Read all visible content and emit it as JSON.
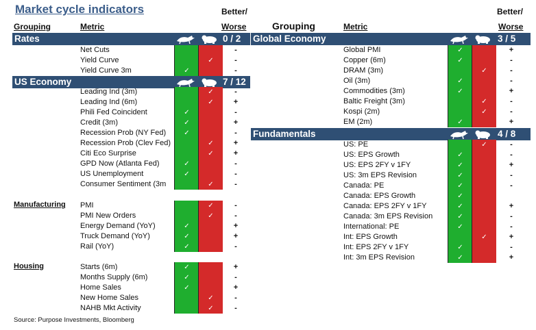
{
  "title": "Market cycle indicators",
  "headers": {
    "grouping": "Grouping",
    "metric": "Metric",
    "better_worse_top": "Better/",
    "better_worse_bottom": "Worse"
  },
  "icons": {
    "bull": "bull-icon",
    "bear": "bear-icon"
  },
  "colors": {
    "band": "#2f4f74",
    "bull_cell": "#1fae2f",
    "bear_cell": "#d42a2a",
    "title": "#3b5d8a"
  },
  "check_mark": "✓",
  "left": {
    "rates": {
      "label": "Rates",
      "score": "0 / 2",
      "rows": [
        {
          "metric": "Net Cuts",
          "signal": "",
          "trend": "-"
        },
        {
          "metric": "Yield Curve",
          "signal": "bear",
          "trend": "-"
        },
        {
          "metric": "Yield Curve 3m",
          "signal": "bull",
          "trend": "-"
        }
      ]
    },
    "us_economy": {
      "label": "US Economy",
      "score": "7 / 12",
      "rows": [
        {
          "metric": "Leading Ind (3m)",
          "signal": "bear",
          "trend": "-"
        },
        {
          "metric": "Leading Ind (6m)",
          "signal": "bear",
          "trend": "+"
        },
        {
          "metric": "Phili Fed Coincident",
          "signal": "bull",
          "trend": "-"
        },
        {
          "metric": "Credit (3m)",
          "signal": "bull",
          "trend": "+"
        },
        {
          "metric": "Recession Prob (NY Fed)",
          "signal": "bull",
          "trend": "-"
        },
        {
          "metric": "Recession Prob (Clev Fed)",
          "signal": "bear",
          "trend": "+"
        },
        {
          "metric": "Citi Eco Surprise",
          "signal": "bear",
          "trend": "+"
        },
        {
          "metric": "GPD Now (Atlanta Fed)",
          "signal": "bull",
          "trend": "-"
        },
        {
          "metric": "US Unemployment",
          "signal": "bull",
          "trend": "-"
        },
        {
          "metric": "Consumer Sentiment (3m",
          "signal": "bear",
          "trend": "-"
        }
      ]
    },
    "manufacturing": {
      "label": "Manufacturing",
      "rows": [
        {
          "metric": "PMI",
          "signal": "bear",
          "trend": "-"
        },
        {
          "metric": "PMI New Orders",
          "signal": "bear",
          "trend": "-"
        },
        {
          "metric": "Energy Demand (YoY)",
          "signal": "bull",
          "trend": "+"
        },
        {
          "metric": "Truck Demand (YoY)",
          "signal": "bull",
          "trend": "+"
        },
        {
          "metric": "Rail (YoY)",
          "signal": "bull",
          "trend": "-"
        }
      ]
    },
    "housing": {
      "label": "Housing",
      "rows": [
        {
          "metric": "Starts (6m)",
          "signal": "bull",
          "trend": "+"
        },
        {
          "metric": "Months Supply (6m)",
          "signal": "bull",
          "trend": "-"
        },
        {
          "metric": "Home Sales",
          "signal": "bull",
          "trend": "+"
        },
        {
          "metric": "New Home Sales",
          "signal": "bear",
          "trend": "-"
        },
        {
          "metric": "NAHB Mkt Activity",
          "signal": "bear",
          "trend": "-"
        }
      ]
    }
  },
  "right": {
    "global_economy": {
      "label": "Global Economy",
      "score": "3 / 5",
      "rows": [
        {
          "metric": "Global PMI",
          "signal": "bull",
          "trend": "+"
        },
        {
          "metric": "Copper (6m)",
          "signal": "bull",
          "trend": "-"
        },
        {
          "metric": "DRAM (3m)",
          "signal": "bear",
          "trend": "-"
        },
        {
          "metric": "Oil (3m)",
          "signal": "bull",
          "trend": "-"
        },
        {
          "metric": "Commodities (3m)",
          "signal": "bull",
          "trend": "+"
        },
        {
          "metric": "Baltic Freight (3m)",
          "signal": "bear",
          "trend": "-"
        },
        {
          "metric": "Kospi (2m)",
          "signal": "bear",
          "trend": "-"
        },
        {
          "metric": "EM (2m)",
          "signal": "bull",
          "trend": "+"
        }
      ]
    },
    "fundamentals": {
      "label": "Fundamentals",
      "score": "4 / 8",
      "rows": [
        {
          "metric": "US: PE",
          "signal": "bear",
          "trend": "-"
        },
        {
          "metric": "US: EPS Growth",
          "signal": "bull",
          "trend": "-"
        },
        {
          "metric": "US: EPS 2FY v 1FY",
          "signal": "bull",
          "trend": "+"
        },
        {
          "metric": "US: 3m EPS Revision",
          "signal": "bull",
          "trend": "-"
        },
        {
          "metric": "Canada: PE",
          "signal": "bull",
          "trend": "-"
        },
        {
          "metric": "Canada: EPS Growth",
          "signal": "bull",
          "trend": ""
        },
        {
          "metric": "Canada: EPS 2FY v 1FY",
          "signal": "bull",
          "trend": "+"
        },
        {
          "metric": "Canada: 3m EPS Revision",
          "signal": "bull",
          "trend": "-"
        },
        {
          "metric": "International: PE",
          "signal": "bull",
          "trend": "-"
        },
        {
          "metric": "Int: EPS Growth",
          "signal": "bear",
          "trend": "+"
        },
        {
          "metric": "Int: EPS 2FY v 1FY",
          "signal": "bull",
          "trend": "-"
        },
        {
          "metric": "Int: 3m EPS Revision",
          "signal": "bull",
          "trend": "+"
        }
      ]
    }
  },
  "source": "Source: Purpose Investments, Bloomberg"
}
